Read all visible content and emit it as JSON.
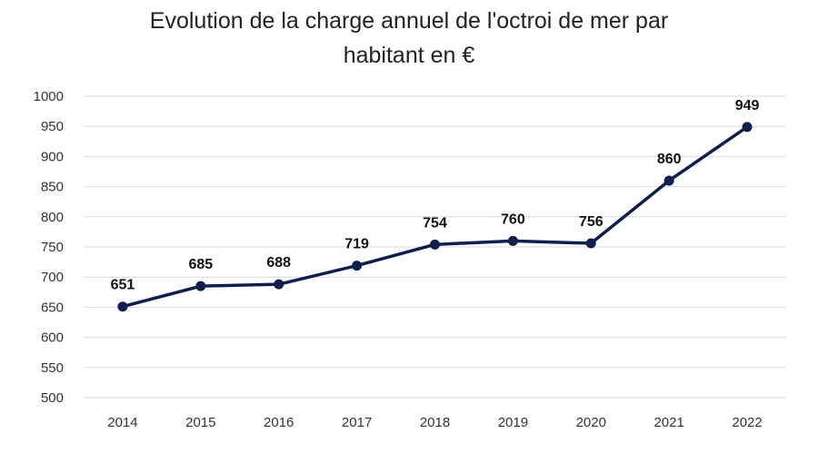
{
  "chart_data": {
    "type": "line",
    "title": "Evolution de la charge annuel de l'octroi de mer par habitant en €",
    "title_lines": [
      "Evolution de la charge annuel de l'octroi de mer par",
      "habitant en €"
    ],
    "xlabel": "",
    "ylabel": "",
    "categories": [
      "2014",
      "2015",
      "2016",
      "2017",
      "2018",
      "2019",
      "2020",
      "2021",
      "2022"
    ],
    "series": [
      {
        "values": [
          651,
          685,
          688,
          719,
          754,
          760,
          756,
          860,
          949
        ],
        "color": "#0f1f4d",
        "data_labels": true
      }
    ],
    "ylim": [
      500,
      1000
    ],
    "yticks": [
      500,
      550,
      600,
      650,
      700,
      750,
      800,
      850,
      900,
      950,
      1000
    ],
    "grid": true,
    "legend": "none"
  },
  "colors": {
    "line": "#0f1f4d",
    "grid": "#d9d9d9",
    "text": "#222222"
  }
}
